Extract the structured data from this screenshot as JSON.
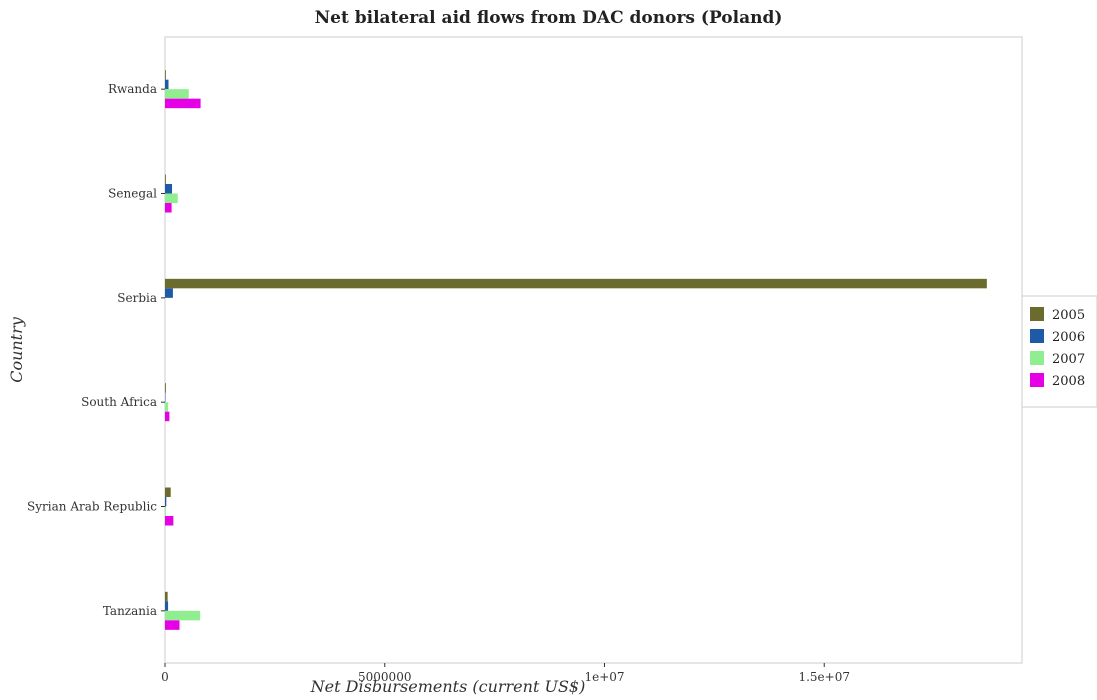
{
  "chart_data": {
    "type": "bar",
    "orientation": "horizontal",
    "title": "Net bilateral aid flows from DAC donors (Poland)",
    "xlabel": "Net Disbursements (current US$)",
    "ylabel": "Country",
    "categories": [
      "Rwanda",
      "Senegal",
      "Serbia",
      "South Africa",
      "Syrian Arab Republic",
      "Tanzania"
    ],
    "series": [
      {
        "name": "2005",
        "color": "#6b6b2e",
        "values": [
          20000,
          20000,
          18700000,
          20000,
          130000,
          60000
        ]
      },
      {
        "name": "2006",
        "color": "#1f5aa8",
        "values": [
          80000,
          160000,
          180000,
          10000,
          30000,
          70000
        ]
      },
      {
        "name": "2007",
        "color": "#90ee90",
        "values": [
          540000,
          290000,
          0,
          70000,
          20000,
          800000
        ]
      },
      {
        "name": "2008",
        "color": "#e600e6",
        "values": [
          810000,
          150000,
          0,
          100000,
          190000,
          330000
        ]
      }
    ],
    "xlim": [
      0,
      19500000
    ],
    "xticks": [
      0,
      5000000,
      10000000,
      15000000
    ],
    "xtick_labels": [
      "0",
      "5000000",
      "1e+07",
      "1.5e+07"
    ],
    "grid": false,
    "legend_position": "right"
  }
}
